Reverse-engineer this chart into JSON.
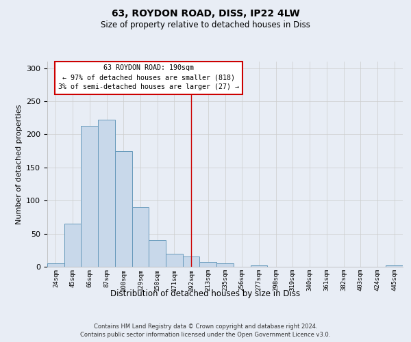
{
  "title": "63, ROYDON ROAD, DISS, IP22 4LW",
  "subtitle": "Size of property relative to detached houses in Diss",
  "xlabel": "Distribution of detached houses by size in Diss",
  "ylabel": "Number of detached properties",
  "footer_line1": "Contains HM Land Registry data © Crown copyright and database right 2024.",
  "footer_line2": "Contains public sector information licensed under the Open Government Licence v3.0.",
  "bar_labels": [
    "24sqm",
    "45sqm",
    "66sqm",
    "87sqm",
    "108sqm",
    "129sqm",
    "150sqm",
    "171sqm",
    "192sqm",
    "213sqm",
    "235sqm",
    "256sqm",
    "277sqm",
    "298sqm",
    "319sqm",
    "340sqm",
    "361sqm",
    "382sqm",
    "403sqm",
    "424sqm",
    "445sqm"
  ],
  "bar_values": [
    5,
    65,
    213,
    222,
    175,
    90,
    40,
    20,
    15,
    7,
    5,
    0,
    2,
    0,
    0,
    0,
    0,
    0,
    0,
    0,
    2
  ],
  "bar_color": "#c8d8ea",
  "bar_edge_color": "#6699bb",
  "bar_linewidth": 0.7,
  "grid_color": "#cccccc",
  "bg_color": "#e8edf5",
  "vline_x_index": 8,
  "vline_color": "#cc0000",
  "vline_linewidth": 1.0,
  "annotation_text": "63 ROYDON ROAD: 190sqm\n← 97% of detached houses are smaller (818)\n3% of semi-detached houses are larger (27) →",
  "annotation_box_edge_color": "#cc0000",
  "annotation_box_face_color": "#ffffff",
  "ylim": [
    0,
    310
  ],
  "yticks": [
    0,
    50,
    100,
    150,
    200,
    250,
    300
  ],
  "figsize": [
    6.0,
    5.0
  ],
  "dpi": 100
}
